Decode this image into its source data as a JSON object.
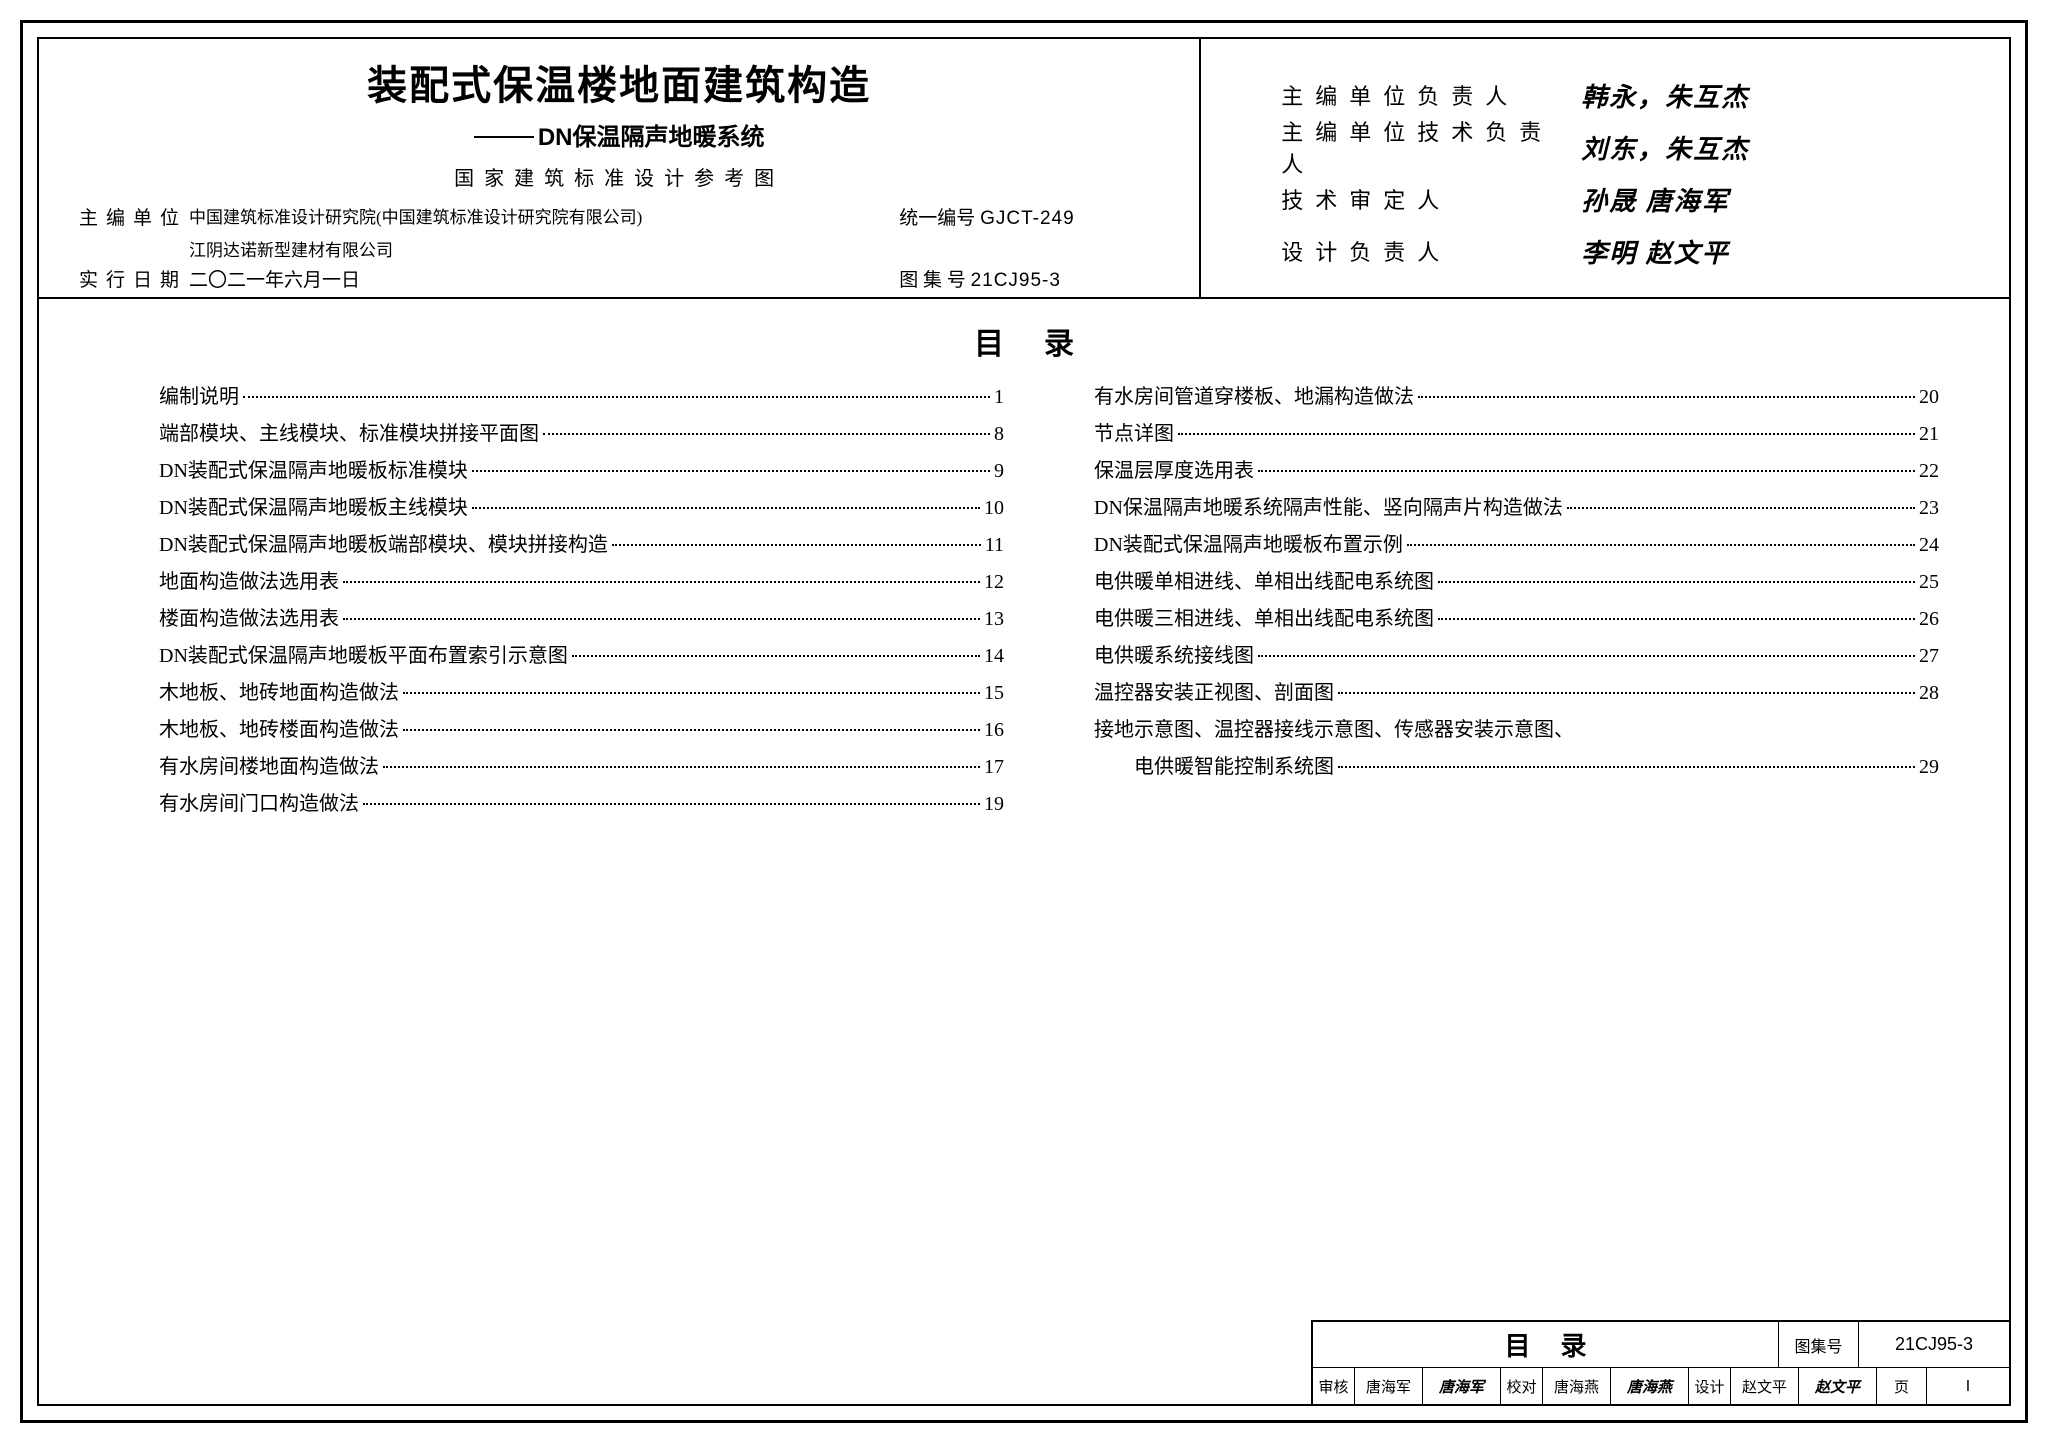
{
  "header": {
    "title_main": "装配式保温楼地面建筑构造",
    "title_sub": "DN保温隔声地暖系统",
    "title_ref": "国家建筑标准设计参考图",
    "org_label": "主编单位",
    "org_line1": "中国建筑标准设计研究院(中国建筑标准设计研究院有限公司)",
    "org_line2": "江阴达诺新型建材有限公司",
    "code_label": "统一编号",
    "code_value": "GJCT-249",
    "date_label": "实行日期",
    "date_value": "二〇二一年六月一日",
    "atlas_label": "图 集 号",
    "atlas_value": "21CJ95-3"
  },
  "signatures": [
    {
      "label": "主编单位负责人",
      "value": "韩永，朱互杰"
    },
    {
      "label": "主编单位技术负责人",
      "value": "刘东，朱互杰"
    },
    {
      "label": "技术审定人",
      "value": "孙晟 唐海军"
    },
    {
      "label": "设计负责人",
      "value": "李明 赵文平"
    }
  ],
  "toc": {
    "title": "目录",
    "left": [
      {
        "t": "编制说明",
        "p": "1"
      },
      {
        "t": "端部模块、主线模块、标准模块拼接平面图",
        "p": "8"
      },
      {
        "t": "DN装配式保温隔声地暖板标准模块",
        "p": "9"
      },
      {
        "t": "DN装配式保温隔声地暖板主线模块",
        "p": "10"
      },
      {
        "t": "DN装配式保温隔声地暖板端部模块、模块拼接构造",
        "p": "11"
      },
      {
        "t": "地面构造做法选用表",
        "p": "12"
      },
      {
        "t": "楼面构造做法选用表",
        "p": "13"
      },
      {
        "t": "DN装配式保温隔声地暖板平面布置索引示意图",
        "p": "14"
      },
      {
        "t": "木地板、地砖地面构造做法",
        "p": "15"
      },
      {
        "t": "木地板、地砖楼面构造做法",
        "p": "16"
      },
      {
        "t": "有水房间楼地面构造做法",
        "p": "17"
      },
      {
        "t": "有水房间门口构造做法",
        "p": "19"
      }
    ],
    "right": [
      {
        "t": "有水房间管道穿楼板、地漏构造做法",
        "p": "20"
      },
      {
        "t": "节点详图",
        "p": "21"
      },
      {
        "t": "保温层厚度选用表",
        "p": "22"
      },
      {
        "t": "DN保温隔声地暖系统隔声性能、竖向隔声片构造做法",
        "p": "23"
      },
      {
        "t": "DN装配式保温隔声地暖板布置示例",
        "p": "24"
      },
      {
        "t": "电供暖单相进线、单相出线配电系统图",
        "p": "25"
      },
      {
        "t": "电供暖三相进线、单相出线配电系统图",
        "p": "26"
      },
      {
        "t": "电供暖系统接线图",
        "p": "27"
      },
      {
        "t": "温控器安装正视图、剖面图",
        "p": "28"
      },
      {
        "t": "接地示意图、温控器接线示意图、传感器安装示意图、",
        "p": ""
      },
      {
        "t": "电供暖智能控制系统图",
        "p": "29",
        "indent": true
      }
    ]
  },
  "footer": {
    "title": "目录",
    "code_label": "图集号",
    "code_value": "21CJ95-3",
    "review_label": "审核",
    "review_name": "唐海军",
    "review_sig": "唐海军",
    "proof_label": "校对",
    "proof_name": "唐海燕",
    "proof_sig": "唐海燕",
    "design_label": "设计",
    "design_name": "赵文平",
    "design_sig": "赵文平",
    "page_label": "页",
    "page_value": "Ⅰ"
  }
}
